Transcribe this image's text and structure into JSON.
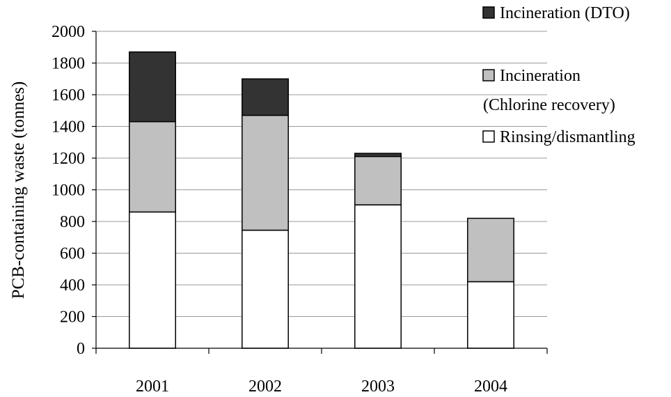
{
  "chart_data": {
    "type": "bar",
    "stacked": true,
    "categories": [
      "2001",
      "2002",
      "2003",
      "2004"
    ],
    "series": [
      {
        "name": "Rinsing/dismantling",
        "values": [
          860,
          745,
          905,
          420
        ],
        "color": "#ffffff"
      },
      {
        "name": "Incineration (Chlorine recovery)",
        "values": [
          570,
          725,
          305,
          400
        ],
        "color": "#c0c0c0"
      },
      {
        "name": "Incineration (DTO)",
        "values": [
          440,
          230,
          20,
          0
        ],
        "color": "#333333"
      }
    ],
    "title": "",
    "xlabel": "",
    "ylabel": "PCB-containing waste (tonnes)",
    "ylim": [
      0,
      2000
    ],
    "yticks": [
      "0",
      "200",
      "400",
      "600",
      "800",
      "1000",
      "1200",
      "1400",
      "1600",
      "1800",
      "2000"
    ],
    "grid": true,
    "legend": {
      "placement": "top-right",
      "entries": [
        {
          "lines": [
            "Incineration (DTO)"
          ],
          "color": "#333333"
        },
        {
          "lines": [
            "Incineration",
            "(Chlorine recovery)"
          ],
          "color": "#c0c0c0"
        },
        {
          "lines": [
            "Rinsing/dismantling"
          ],
          "color": "#ffffff"
        }
      ]
    }
  }
}
